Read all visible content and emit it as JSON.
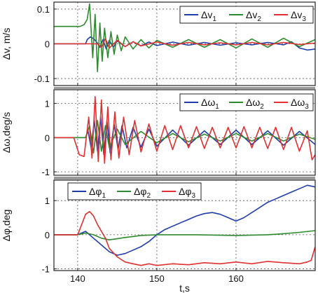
{
  "chart_data": [
    {
      "type": "line",
      "ylabel": "Δv, m/s",
      "xlim": [
        137,
        170
      ],
      "ylim": [
        -0.12,
        0.12
      ],
      "yticks": [
        0.1,
        0,
        -0.1
      ],
      "ytick_labels": [
        "0.1",
        "0",
        "-0.1"
      ],
      "xticks": [
        140,
        150,
        160
      ],
      "grid": true,
      "legend_position": "top-right",
      "series": [
        {
          "name": "Δv",
          "sub": "1",
          "color": "#1f3da8",
          "x": [
            137,
            141,
            141.2,
            141.6,
            142.0,
            142.4,
            142.8,
            143.2,
            143.6,
            144.0,
            144.5,
            145,
            146,
            147,
            148,
            149,
            150,
            152,
            154,
            156,
            158,
            160,
            162,
            164,
            166,
            167,
            168,
            169,
            170
          ],
          "y": [
            0,
            0,
            0.012,
            0.02,
            0.015,
            0.005,
            -0.01,
            0.012,
            -0.015,
            0.01,
            -0.01,
            0.008,
            -0.008,
            0.006,
            -0.006,
            0.005,
            -0.005,
            0.005,
            -0.004,
            0.004,
            -0.004,
            0.003,
            -0.003,
            0.004,
            -0.003,
            0.006,
            -0.012,
            -0.018,
            -0.015
          ]
        },
        {
          "name": "Δv",
          "sub": "2",
          "color": "#2e8a2e",
          "x": [
            137,
            140.3,
            140.8,
            141.2,
            141.5,
            141.9,
            142.2,
            142.5,
            142.8,
            143.1,
            143.4,
            143.8,
            144.2,
            144.6,
            145,
            145.5,
            146,
            147,
            148,
            149,
            150,
            152,
            154,
            156,
            158,
            160,
            162,
            164,
            166,
            168,
            170
          ],
          "y": [
            0.05,
            0.05,
            0.055,
            0.07,
            0.115,
            -0.04,
            0.085,
            -0.08,
            0.06,
            -0.05,
            0.045,
            -0.04,
            0.035,
            -0.03,
            0.025,
            -0.02,
            0.02,
            -0.015,
            0.012,
            -0.012,
            0.01,
            -0.01,
            0.012,
            -0.01,
            0.012,
            -0.012,
            0.014,
            -0.01,
            0.016,
            -0.008,
            0.012
          ]
        },
        {
          "name": "Δv",
          "sub": "3",
          "color": "#e03030",
          "x": [
            137,
            142.5,
            143,
            143.5,
            144,
            145,
            146,
            147,
            148,
            150,
            152,
            154,
            156,
            158,
            160,
            162,
            164,
            166,
            168,
            170
          ],
          "y": [
            0,
            0,
            -0.01,
            0.015,
            -0.012,
            0.01,
            -0.008,
            0.006,
            -0.006,
            0.005,
            -0.004,
            0.004,
            -0.003,
            0.003,
            -0.003,
            0.004,
            -0.003,
            0.004,
            -0.002,
            0.002
          ]
        }
      ]
    },
    {
      "type": "line",
      "ylabel": "Δω,deg/s",
      "xlim": [
        137,
        170
      ],
      "ylim": [
        -1.1,
        1.4
      ],
      "yticks": [
        1,
        0,
        -1
      ],
      "ytick_labels": [
        "1",
        "0",
        "-1"
      ],
      "xticks": [
        140,
        150,
        160
      ],
      "grid": true,
      "legend_position": "top-right",
      "series": [
        {
          "name": "Δω",
          "sub": "1",
          "color": "#1f3da8",
          "x": [
            137,
            141,
            141.3,
            141.7,
            142.1,
            142.5,
            142.9,
            143.3,
            143.7,
            144.1,
            144.6,
            145.1,
            145.6,
            146.2,
            147,
            148,
            149,
            150,
            152,
            154,
            156,
            158,
            160,
            162,
            164,
            166,
            168,
            170
          ],
          "y": [
            0,
            0,
            0.2,
            -0.3,
            0.5,
            -0.4,
            0.6,
            -0.5,
            0.5,
            -0.45,
            0.4,
            -0.35,
            0.35,
            -0.3,
            0.3,
            -0.28,
            0.25,
            -0.25,
            0.22,
            -0.22,
            0.2,
            -0.2,
            0.22,
            -0.2,
            0.2,
            -0.22,
            0.18,
            -0.2
          ]
        },
        {
          "name": "Δω",
          "sub": "2",
          "color": "#2e8a2e",
          "x": [
            137,
            141,
            141.5,
            142,
            142.5,
            143,
            143.5,
            144,
            145,
            146,
            148,
            150,
            152,
            154,
            156,
            158,
            160,
            162,
            164,
            166,
            168,
            170
          ],
          "y": [
            0,
            0,
            0.35,
            -0.45,
            0.5,
            -0.4,
            0.35,
            -0.3,
            0.25,
            -0.2,
            0.18,
            -0.15,
            0.12,
            -0.12,
            0.1,
            -0.1,
            0.12,
            -0.1,
            0.12,
            -0.1,
            0.1,
            -0.05
          ]
        },
        {
          "name": "Δω",
          "sub": "3",
          "color": "#e03030",
          "x": [
            137,
            139.5,
            140.2,
            140.8,
            141.4,
            141.8,
            142.2,
            142.6,
            143.0,
            143.4,
            143.8,
            144.2,
            144.7,
            145.2,
            145.8,
            146.5,
            147.2,
            148,
            149,
            150,
            151,
            152,
            153,
            154,
            155,
            156,
            157,
            158,
            159,
            160,
            161,
            162,
            163,
            164,
            165,
            166,
            167,
            168,
            169,
            169.6,
            170
          ],
          "y": [
            0,
            0,
            -0.5,
            -0.55,
            0.6,
            -0.6,
            1.2,
            -0.7,
            1.1,
            -0.75,
            0.9,
            -0.65,
            0.75,
            -0.6,
            0.6,
            -0.5,
            0.5,
            -0.42,
            0.4,
            -0.4,
            0.35,
            -0.35,
            0.35,
            -0.3,
            0.32,
            -0.32,
            0.3,
            -0.3,
            0.3,
            -0.3,
            0.32,
            -0.3,
            0.3,
            -0.32,
            0.3,
            -0.35,
            0.3,
            -0.4,
            0.2,
            -0.65,
            -0.5
          ]
        }
      ]
    },
    {
      "type": "line",
      "ylabel": "Δφ,deg",
      "xlabel": "t,s",
      "xlim": [
        137,
        170
      ],
      "ylim": [
        -1.05,
        1.6
      ],
      "yticks": [
        1,
        0,
        -1
      ],
      "ytick_labels": [
        "1",
        "0",
        "-1"
      ],
      "xticks": [
        140,
        150,
        160
      ],
      "xtick_labels": [
        "140",
        "150",
        "160"
      ],
      "grid": true,
      "legend_position": "top-left",
      "series": [
        {
          "name": "Δφ",
          "sub": "1",
          "color": "#1f3da8",
          "x": [
            137,
            140,
            141,
            142,
            143,
            144,
            145,
            146,
            147,
            148,
            149,
            150,
            151,
            152,
            153,
            154,
            155,
            156,
            157,
            158,
            159,
            160,
            161,
            162,
            163,
            164,
            165,
            166,
            167,
            168,
            169,
            170
          ],
          "y": [
            0,
            0,
            0.1,
            -0.1,
            -0.3,
            -0.5,
            -0.6,
            -0.55,
            -0.45,
            -0.35,
            -0.2,
            0,
            0.15,
            0.25,
            0.35,
            0.45,
            0.55,
            0.62,
            0.65,
            0.6,
            0.5,
            0.4,
            0.5,
            0.65,
            0.8,
            0.95,
            1.05,
            1.15,
            1.25,
            1.35,
            1.45,
            1.4
          ]
        },
        {
          "name": "Δφ",
          "sub": "2",
          "color": "#2e8a2e",
          "x": [
            137,
            140,
            141,
            142,
            143,
            144,
            146,
            148,
            150,
            155,
            160,
            164,
            166,
            168,
            170
          ],
          "y": [
            0,
            0,
            0.05,
            0,
            -0.1,
            -0.15,
            -0.08,
            -0.02,
            0,
            0,
            -0.02,
            0,
            0.03,
            0.07,
            0.12
          ]
        },
        {
          "name": "Δφ",
          "sub": "3",
          "color": "#e03030",
          "x": [
            137,
            140,
            140.5,
            141,
            141.5,
            142,
            142.5,
            143,
            143.5,
            144,
            145,
            146,
            147,
            148,
            149,
            150,
            152,
            154,
            156,
            158,
            160,
            162,
            164,
            166,
            168,
            169,
            169.5,
            170
          ],
          "y": [
            0,
            0,
            0.3,
            0.6,
            0.68,
            0.55,
            0.3,
            0.1,
            -0.1,
            -0.4,
            -0.65,
            -0.8,
            -0.85,
            -0.9,
            -0.85,
            -0.9,
            -0.85,
            -0.88,
            -0.82,
            -0.85,
            -0.8,
            -0.85,
            -0.78,
            -0.82,
            -0.85,
            -0.8,
            -0.75,
            -0.35
          ]
        }
      ]
    }
  ]
}
